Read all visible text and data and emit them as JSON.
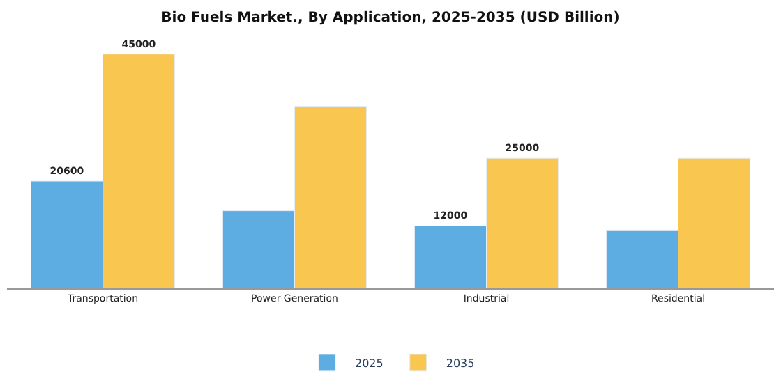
{
  "chart_data": {
    "type": "bar",
    "title": "Bio Fuels Market., By Application, 2025-2035 (USD Billion)",
    "categories": [
      "Transportation",
      "Power Generation",
      "Industrial",
      "Residential"
    ],
    "series": [
      {
        "name": "2025",
        "color": "#5dade2",
        "values": [
          20600,
          14900,
          12000,
          11200
        ],
        "value_labels": [
          "20600",
          null,
          "12000",
          null
        ]
      },
      {
        "name": "2035",
        "color": "#f9c74f",
        "values": [
          45000,
          35000,
          25000,
          25000
        ],
        "value_labels": [
          "45000",
          null,
          "25000",
          null
        ]
      }
    ],
    "legend": "bottom"
  }
}
